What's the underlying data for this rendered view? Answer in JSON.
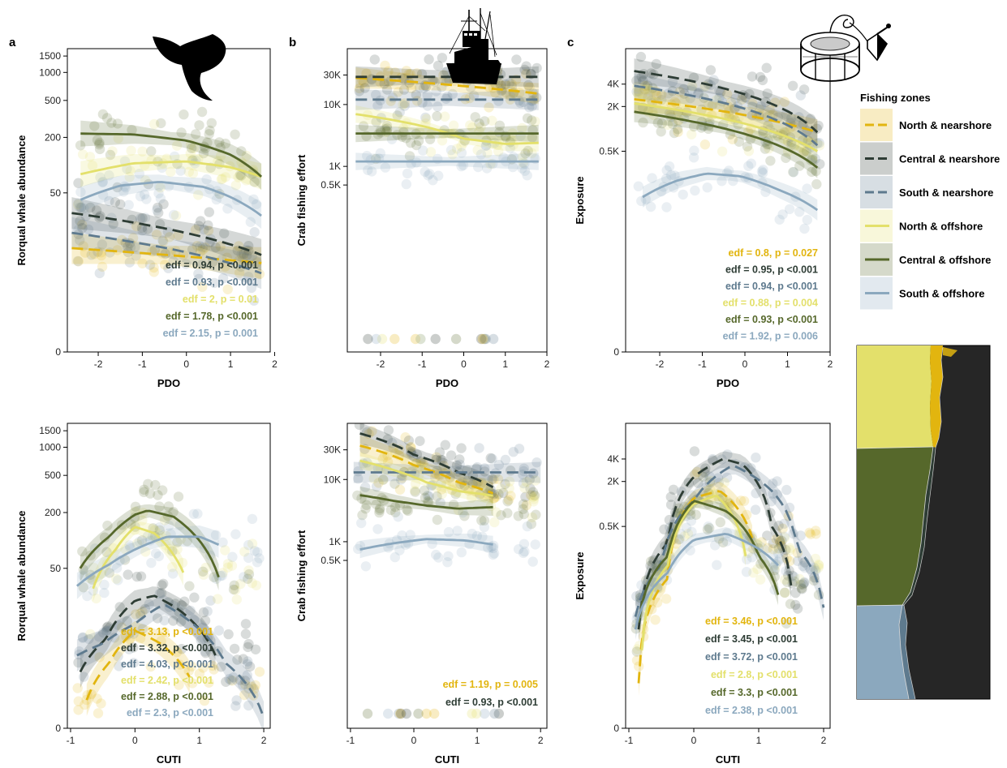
{
  "colors": {
    "north_nearshore": "#E2B50F",
    "central_nearshore": "#2E3D35",
    "south_nearshore": "#5E7A8E",
    "north_offshore": "#E3E06B",
    "central_offshore": "#56682B",
    "south_offshore": "#8BA8BE",
    "ocean": "#262626"
  },
  "legend": {
    "title": "Fishing zones",
    "items": [
      {
        "label": "North & nearshore",
        "color": "#E2B50F",
        "dashed": true
      },
      {
        "label": "Central & nearshore",
        "color": "#2E3D35",
        "dashed": true
      },
      {
        "label": "South & nearshore",
        "color": "#5E7A8E",
        "dashed": true
      },
      {
        "label": "North & offshore",
        "color": "#E3E06B",
        "dashed": false
      },
      {
        "label": "Central & offshore",
        "color": "#56682B",
        "dashed": false
      },
      {
        "label": "South & offshore",
        "color": "#8BA8BE",
        "dashed": false
      }
    ]
  },
  "icons": [
    "whale-tail-icon",
    "fishing-boat-icon",
    "crab-pot-icon"
  ],
  "chart_data": [
    {
      "panel": "a",
      "type": "line",
      "xlabel": "PDO",
      "ylabel": "Rorqual whale abundance",
      "xlim": [
        -2.7,
        1.9
      ],
      "xticks": [
        -2,
        -1,
        0,
        1,
        2
      ],
      "ytick_labels": [
        "0",
        "50",
        "200",
        "500",
        "1000",
        "1500"
      ],
      "ytick_values": [
        0,
        50,
        200,
        500,
        1000,
        1500
      ],
      "ylim": [
        -0.3,
        1800
      ],
      "series": [
        {
          "name": "North & nearshore",
          "dashed": true,
          "x": [
            -2.6,
            1.7
          ],
          "y": [
            12,
            8
          ]
        },
        {
          "name": "Central & nearshore",
          "dashed": true,
          "x": [
            -2.6,
            1.7
          ],
          "y": [
            30,
            10
          ]
        },
        {
          "name": "South & nearshore",
          "dashed": true,
          "x": [
            -2.6,
            1.7
          ],
          "y": [
            18,
            6
          ]
        },
        {
          "name": "North & offshore",
          "dashed": false,
          "x": [
            -2.4,
            -1.2,
            0,
            1.0,
            1.7
          ],
          "y": [
            80,
            105,
            110,
            95,
            75
          ]
        },
        {
          "name": "Central & offshore",
          "dashed": false,
          "x": [
            -2.4,
            -1.2,
            0,
            1.0,
            1.7
          ],
          "y": [
            220,
            215,
            185,
            130,
            75
          ]
        },
        {
          "name": "South & offshore",
          "dashed": false,
          "x": [
            -2.4,
            -1.5,
            -0.6,
            0.4,
            1.0,
            1.7
          ],
          "y": [
            42,
            60,
            66,
            58,
            45,
            28
          ]
        }
      ],
      "annotations": [
        "edf = 0.94, p <0.001",
        "edf = 0.93, p <0.001",
        "edf = 2, p = 0.01",
        "edf = 1.78, p <0.001",
        "edf = 2.15, p = 0.001"
      ]
    },
    {
      "panel": "b",
      "type": "line",
      "xlabel": "PDO",
      "ylabel": "Crab fishing effort",
      "xlim": [
        -2.8,
        2.0
      ],
      "xticks": [
        -2,
        -1,
        0,
        1,
        2
      ],
      "ytick_labels": [
        "0.5K",
        "1K",
        "10K",
        "30K"
      ],
      "ytick_values": [
        500,
        1000,
        10000,
        30000
      ],
      "ylim": [
        1,
        80000
      ],
      "series": [
        {
          "name": "North & nearshore",
          "dashed": true,
          "x": [
            -2.6,
            1.8
          ],
          "y": [
            27000,
            15000
          ]
        },
        {
          "name": "Central & nearshore",
          "dashed": true,
          "x": [
            -2.6,
            1.8
          ],
          "y": [
            28000,
            28000
          ]
        },
        {
          "name": "South & nearshore",
          "dashed": true,
          "x": [
            -2.6,
            1.8
          ],
          "y": [
            12000,
            12000
          ]
        },
        {
          "name": "North & offshore",
          "dashed": false,
          "x": [
            -2.6,
            -1.0,
            0,
            1.0,
            1.8
          ],
          "y": [
            7000,
            4500,
            2800,
            2300,
            2400
          ]
        },
        {
          "name": "Central & offshore",
          "dashed": false,
          "x": [
            -2.6,
            1.8
          ],
          "y": [
            3400,
            3400
          ]
        },
        {
          "name": "South & offshore",
          "dashed": false,
          "x": [
            -2.6,
            1.8
          ],
          "y": [
            1200,
            1200
          ]
        }
      ],
      "annotations": []
    },
    {
      "panel": "c",
      "type": "line",
      "xlabel": "PDO",
      "ylabel": "Exposure",
      "xlim": [
        -2.8,
        2.0
      ],
      "xticks": [
        -2,
        -1,
        0,
        1,
        2
      ],
      "ytick_labels": [
        "0",
        "0.5K",
        "2K",
        "4K"
      ],
      "ytick_values": [
        0,
        500,
        2000,
        4000
      ],
      "ylim": [
        -0.3,
        12000
      ],
      "series": [
        {
          "name": "North & nearshore",
          "dashed": true,
          "x": [
            -2.6,
            1.7
          ],
          "y": [
            2500,
            900
          ]
        },
        {
          "name": "Central & nearshore",
          "dashed": true,
          "x": [
            -2.6,
            1.7
          ],
          "y": [
            6000,
            900
          ]
        },
        {
          "name": "South & nearshore",
          "dashed": true,
          "x": [
            -2.6,
            1.7
          ],
          "y": [
            3800,
            600
          ]
        },
        {
          "name": "North & offshore",
          "dashed": false,
          "x": [
            -2.6,
            1.7
          ],
          "y": [
            2200,
            500
          ]
        },
        {
          "name": "Central & offshore",
          "dashed": false,
          "x": [
            -2.6,
            1.7
          ],
          "y": [
            1700,
            300
          ]
        },
        {
          "name": "South & offshore",
          "dashed": false,
          "x": [
            -2.4,
            -1.6,
            -0.9,
            -0.1,
            0.8,
            1.7
          ],
          "y": [
            120,
            200,
            250,
            230,
            150,
            80
          ]
        }
      ],
      "annotations": [
        "edf = 0.8, p = 0.027",
        "edf = 0.95, p <0.001",
        "edf = 0.94, p <0.001",
        "edf = 0.88, p = 0.004",
        "edf = 0.93, p <0.001",
        "edf = 1.92, p = 0.006"
      ]
    },
    {
      "panel": "",
      "type": "line",
      "xlabel": "CUTI",
      "ylabel": "Rorqual whale abundance",
      "xlim": [
        -1.05,
        2.1
      ],
      "xticks": [
        -1,
        0,
        1,
        2
      ],
      "ytick_labels": [
        "0",
        "50",
        "200",
        "500",
        "1000",
        "1500"
      ],
      "ytick_values": [
        0,
        50,
        200,
        500,
        1000,
        1500
      ],
      "ylim": [
        -0.3,
        1800
      ],
      "series": [
        {
          "name": "North & nearshore",
          "dashed": true,
          "x": [
            -0.75,
            -0.4,
            0,
            0.4,
            0.85
          ],
          "y": [
            1,
            4,
            10,
            7,
            2.5
          ]
        },
        {
          "name": "Central & nearshore",
          "dashed": true,
          "x": [
            -0.85,
            -0.45,
            0,
            0.3,
            0.7,
            1.25
          ],
          "y": [
            3,
            8,
            22,
            25,
            17,
            5
          ]
        },
        {
          "name": "South & nearshore",
          "dashed": true,
          "x": [
            -0.9,
            -0.5,
            0,
            0.45,
            0.9,
            1.4,
            2.0
          ],
          "y": [
            5,
            7,
            12,
            20,
            12,
            4,
            0.3
          ]
        },
        {
          "name": "North & offshore",
          "dashed": false,
          "x": [
            -0.65,
            -0.3,
            0,
            0.3,
            0.75
          ],
          "y": [
            30,
            80,
            140,
            120,
            45
          ]
        },
        {
          "name": "Central & offshore",
          "dashed": false,
          "x": [
            -0.85,
            -0.4,
            0,
            0.2,
            0.6,
            1.0,
            1.3
          ],
          "y": [
            50,
            110,
            190,
            210,
            180,
            100,
            40
          ]
        },
        {
          "name": "South & offshore",
          "dashed": false,
          "x": [
            -0.9,
            -0.4,
            0,
            0.5,
            1.0,
            1.3
          ],
          "y": [
            32,
            55,
            80,
            110,
            110,
            90
          ]
        }
      ],
      "annotations": [
        "edf = 3.13, p <0.001",
        "edf = 3.32, p <0.001",
        "edf = 4.03, p <0.001",
        "edf = 2.42, p <0.001",
        "edf = 2.88, p <0.001",
        "edf = 2.3, p <0.001"
      ]
    },
    {
      "panel": "",
      "type": "line",
      "xlabel": "CUTI",
      "ylabel": "Crab fishing effort",
      "xlim": [
        -1.05,
        2.1
      ],
      "xticks": [
        -1,
        0,
        1,
        2
      ],
      "ytick_labels": [
        "0.5K",
        "1K",
        "10K",
        "30K"
      ],
      "ytick_values": [
        500,
        1000,
        10000,
        30000
      ],
      "ylim": [
        1,
        80000
      ],
      "series": [
        {
          "name": "North & nearshore",
          "dashed": true,
          "x": [
            -0.85,
            0,
            0.7,
            1.25
          ],
          "y": [
            35000,
            17000,
            9000,
            6000
          ]
        },
        {
          "name": "Central & nearshore",
          "dashed": true,
          "x": [
            -0.85,
            0,
            0.7,
            1.25
          ],
          "y": [
            55000,
            25000,
            13000,
            7500
          ]
        },
        {
          "name": "South & nearshore",
          "dashed": true,
          "x": [
            -0.95,
            2.0
          ],
          "y": [
            13000,
            13000
          ]
        },
        {
          "name": "North & offshore",
          "dashed": false,
          "x": [
            -0.85,
            -0.3,
            0.2,
            0.7,
            1.25
          ],
          "y": [
            20000,
            14000,
            9000,
            6500,
            5500
          ]
        },
        {
          "name": "Central & offshore",
          "dashed": false,
          "x": [
            -0.85,
            -0.3,
            0.2,
            0.7,
            1.25
          ],
          "y": [
            5600,
            4500,
            3800,
            3400,
            3600
          ]
        },
        {
          "name": "South & offshore",
          "dashed": false,
          "x": [
            -0.85,
            -0.3,
            0.2,
            0.8,
            1.25
          ],
          "y": [
            750,
            950,
            1100,
            1050,
            900
          ]
        }
      ],
      "annotations": [
        "edf = 1.19, p = 0.005",
        "edf = 0.93, p <0.001"
      ]
    },
    {
      "panel": "",
      "type": "line",
      "xlabel": "CUTI",
      "ylabel": "Exposure",
      "xlim": [
        -1.05,
        2.1
      ],
      "xticks": [
        -1,
        0,
        1,
        2
      ],
      "ytick_labels": [
        "0",
        "0.5K",
        "2K",
        "4K"
      ],
      "ytick_values": [
        0,
        500,
        2000,
        4000
      ],
      "ylim": [
        -0.3,
        12000
      ],
      "series": [
        {
          "name": "North & nearshore",
          "dashed": true,
          "x": [
            -0.85,
            -0.4,
            0,
            0.4,
            0.9
          ],
          "y": [
            3,
            100,
            1200,
            1500,
            350
          ]
        },
        {
          "name": "Central & nearshore",
          "dashed": true,
          "x": [
            -0.85,
            -0.4,
            0,
            0.45,
            0.75,
            1.2,
            1.5
          ],
          "y": [
            20,
            300,
            2300,
            4000,
            3400,
            500,
            80
          ]
        },
        {
          "name": "South & nearshore",
          "dashed": true,
          "x": [
            -0.9,
            -0.5,
            0,
            0.6,
            1.2,
            1.6,
            2.0
          ],
          "y": [
            30,
            150,
            1100,
            3300,
            1500,
            250,
            40
          ]
        },
        {
          "name": "North & offshore",
          "dashed": false,
          "x": [
            -0.8,
            -0.4,
            0,
            0.35,
            0.8
          ],
          "y": [
            10,
            150,
            1000,
            1300,
            200
          ]
        },
        {
          "name": "Central & offshore",
          "dashed": false,
          "x": [
            -0.85,
            -0.4,
            0,
            0.5,
            1.0,
            1.3
          ],
          "y": [
            25,
            200,
            1100,
            800,
            200,
            60
          ]
        },
        {
          "name": "South & offshore",
          "dashed": false,
          "x": [
            -0.9,
            -0.4,
            0,
            0.5,
            1.0,
            1.3
          ],
          "y": [
            20,
            120,
            330,
            400,
            250,
            150
          ]
        }
      ],
      "annotations": [
        "edf = 3.46, p <0.001",
        "edf = 3.45, p <0.001",
        "edf = 3.72, p <0.001",
        "edf = 2.8, p <0.001",
        "edf = 3.3, p <0.001",
        "edf = 2.38, p <0.001"
      ]
    }
  ]
}
